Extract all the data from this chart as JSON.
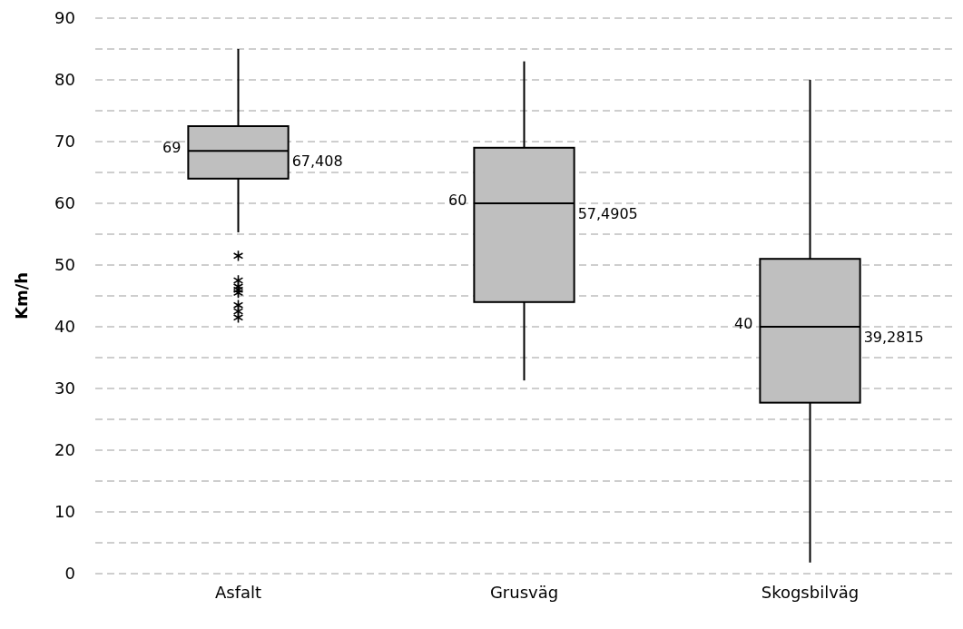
{
  "chart_data": {
    "type": "box",
    "ylabel": "Km/h",
    "categories": [
      "Asfalt",
      "Grusväg",
      "Skogsbilväg"
    ],
    "boxes": [
      {
        "low": 55.3,
        "q1": 64,
        "median": 68.5,
        "q3": 72.5,
        "high": 85,
        "outliers": [
          51.5,
          47.5,
          46.5,
          46,
          45.5,
          43.5,
          42.5,
          41.5
        ]
      },
      {
        "low": 31.3,
        "q1": 44,
        "median": 60,
        "q3": 69,
        "high": 83
      },
      {
        "low": 1.8,
        "q1": 27.7,
        "median": 40,
        "q3": 51,
        "high": 80
      }
    ],
    "color": "#bfbfbf",
    "ylim": [
      0,
      90
    ],
    "yticks": [
      0,
      {
        "value": 5,
        "label": null
      },
      10,
      {
        "value": 15,
        "label": null
      },
      20,
      {
        "value": 25,
        "label": null
      },
      30,
      {
        "value": 35,
        "label": null
      },
      40,
      {
        "value": 45,
        "label": null
      },
      50,
      {
        "value": 55,
        "label": null
      },
      60,
      {
        "value": 65,
        "label": null
      },
      70,
      {
        "value": 75,
        "label": null
      },
      80,
      {
        "value": 85,
        "label": null
      },
      90
    ],
    "grid": true,
    "annotations": [
      "69",
      "67,408",
      "60",
      "57,4905",
      "40",
      "39,2815"
    ]
  }
}
